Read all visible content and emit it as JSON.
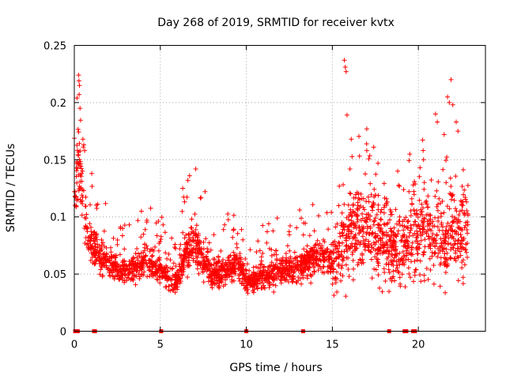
{
  "chart_data": {
    "type": "scatter",
    "title": "Day 268 of 2019, SRMTID for receiver kvtx",
    "xlabel": "GPS time / hours",
    "ylabel": "SRMTID / TECUs",
    "xlim": [
      0,
      23.9
    ],
    "ylim": [
      0,
      0.25
    ],
    "xticks": [
      0,
      5,
      10,
      15,
      20
    ],
    "xtick_labels": [
      "0",
      "5",
      "10",
      "15",
      "20"
    ],
    "yticks": [
      0,
      0.05,
      0.1,
      0.15,
      0.2,
      0.25
    ],
    "ytick_labels": [
      "0",
      "0.05",
      "0.1",
      "0.15",
      "0.2",
      "0.25"
    ],
    "grid": true,
    "marker": "+",
    "color": "#ff0000",
    "series": [
      {
        "name": "SRMTID",
        "trend_x": [
          0.0,
          0.2,
          0.5,
          0.8,
          1.0,
          1.5,
          2.0,
          2.5,
          3.0,
          3.5,
          4.0,
          4.5,
          5.0,
          5.5,
          6.0,
          6.5,
          7.0,
          7.5,
          8.0,
          8.5,
          9.0,
          9.5,
          10.0,
          10.5,
          11.0,
          11.5,
          12.0,
          12.5,
          13.0,
          13.5,
          14.0,
          14.5,
          15.0,
          15.5,
          16.0,
          16.5,
          17.0,
          17.5,
          18.0,
          18.5,
          19.0,
          19.5,
          20.0,
          20.5,
          21.0,
          21.5,
          22.0,
          22.5,
          22.9
        ],
        "trend_y": [
          0.1,
          0.15,
          0.12,
          0.08,
          0.075,
          0.065,
          0.06,
          0.055,
          0.05,
          0.055,
          0.06,
          0.06,
          0.055,
          0.045,
          0.045,
          0.07,
          0.08,
          0.06,
          0.05,
          0.05,
          0.055,
          0.06,
          0.045,
          0.045,
          0.05,
          0.05,
          0.055,
          0.055,
          0.055,
          0.06,
          0.065,
          0.065,
          0.06,
          0.07,
          0.08,
          0.09,
          0.09,
          0.085,
          0.08,
          0.07,
          0.07,
          0.08,
          0.09,
          0.09,
          0.085,
          0.08,
          0.09,
          0.09,
          0.085
        ],
        "outliers": [
          [
            0.25,
            0.224
          ],
          [
            0.27,
            0.219
          ],
          [
            0.3,
            0.215
          ],
          [
            0.28,
            0.207
          ],
          [
            0.33,
            0.195
          ],
          [
            0.5,
            0.168
          ],
          [
            0.55,
            0.163
          ],
          [
            0.6,
            0.158
          ],
          [
            6.7,
            0.136
          ],
          [
            6.6,
            0.132
          ],
          [
            6.3,
            0.125
          ],
          [
            7.6,
            0.122
          ],
          [
            15.7,
            0.237
          ],
          [
            15.75,
            0.231
          ],
          [
            15.8,
            0.227
          ],
          [
            15.85,
            0.189
          ],
          [
            16.1,
            0.168
          ],
          [
            17.0,
            0.177
          ],
          [
            17.0,
            0.158
          ],
          [
            18.8,
            0.14
          ],
          [
            19.5,
            0.155
          ],
          [
            21.0,
            0.19
          ],
          [
            21.1,
            0.183
          ],
          [
            21.7,
            0.205
          ],
          [
            21.8,
            0.2
          ],
          [
            21.9,
            0.22
          ],
          [
            22.0,
            0.198
          ],
          [
            22.2,
            0.183
          ],
          [
            22.3,
            0.175
          ],
          [
            21.5,
            0.172
          ],
          [
            20.1,
            0.143
          ],
          [
            20.3,
            0.15
          ],
          [
            11.3,
            0.094
          ],
          [
            11.8,
            0.099
          ],
          [
            13.1,
            0.106
          ],
          [
            14.2,
            0.101
          ],
          [
            3.9,
            0.105
          ],
          [
            9.2,
            0.082
          ]
        ],
        "zero_x": [
          0.05,
          0.15,
          0.2,
          1.15,
          1.2,
          5.05,
          10.0,
          13.3,
          18.3,
          19.2,
          19.3,
          19.7,
          19.8
        ]
      }
    ]
  }
}
